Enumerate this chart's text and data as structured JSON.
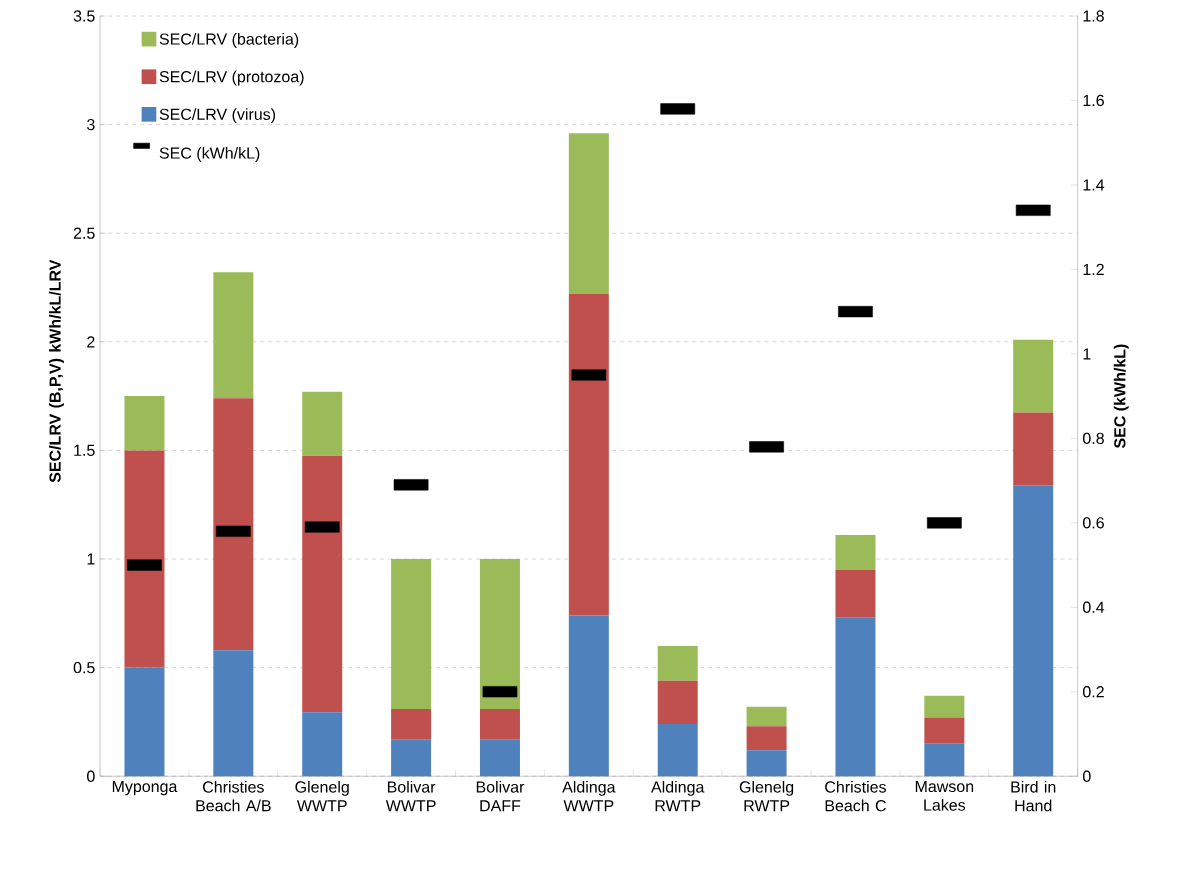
{
  "chart_data": {
    "type": "bar",
    "stacked": true,
    "categories": [
      "Myponga",
      "Christies Beach A/B",
      "Glenelg WWTP",
      "Bolivar WWTP",
      "Bolivar DAFF",
      "Aldinga WWTP",
      "Aldinga RWTP",
      "Glenelg RWTP",
      "Christies Beach C",
      "Mawson Lakes",
      "Bird in Hand"
    ],
    "series": [
      {
        "name": "SEC/LRV (virus)",
        "color": "#4f81bd",
        "values": [
          0.5,
          0.58,
          0.295,
          0.17,
          0.17,
          0.74,
          0.24,
          0.12,
          0.73,
          0.15,
          1.34
        ]
      },
      {
        "name": "SEC/LRV (protozoa)",
        "color": "#c0504d",
        "values": [
          1.0,
          1.16,
          1.18,
          0.14,
          0.14,
          1.48,
          0.2,
          0.11,
          0.22,
          0.12,
          0.335
        ]
      },
      {
        "name": "SEC/LRV (bacteria)",
        "color": "#9bbb59",
        "values": [
          0.25,
          0.58,
          0.295,
          0.69,
          0.69,
          0.74,
          0.16,
          0.09,
          0.16,
          0.1,
          0.335
        ]
      },
      {
        "name": "SEC (kWh/kL)",
        "type": "scatter",
        "axis": "y2",
        "marker": "square",
        "color": "#000000",
        "values": [
          0.5,
          0.58,
          0.59,
          0.69,
          0.2,
          0.95,
          1.58,
          0.78,
          1.1,
          0.6,
          1.34
        ]
      }
    ],
    "ylabel": "SEC/LRV (B,P,V) kWh/kL/LRV",
    "y2label": "SEC (kWh/kL)",
    "ylim": [
      0,
      3.5
    ],
    "yticks": [
      0,
      0.5,
      1,
      1.5,
      2,
      2.5,
      3,
      3.5
    ],
    "y2lim": [
      0,
      1.8
    ],
    "y2ticks": [
      0,
      0.2,
      0.4,
      0.6,
      0.8,
      1,
      1.2,
      1.4,
      1.6,
      1.8
    ],
    "grid": "y",
    "legend": "top left"
  }
}
